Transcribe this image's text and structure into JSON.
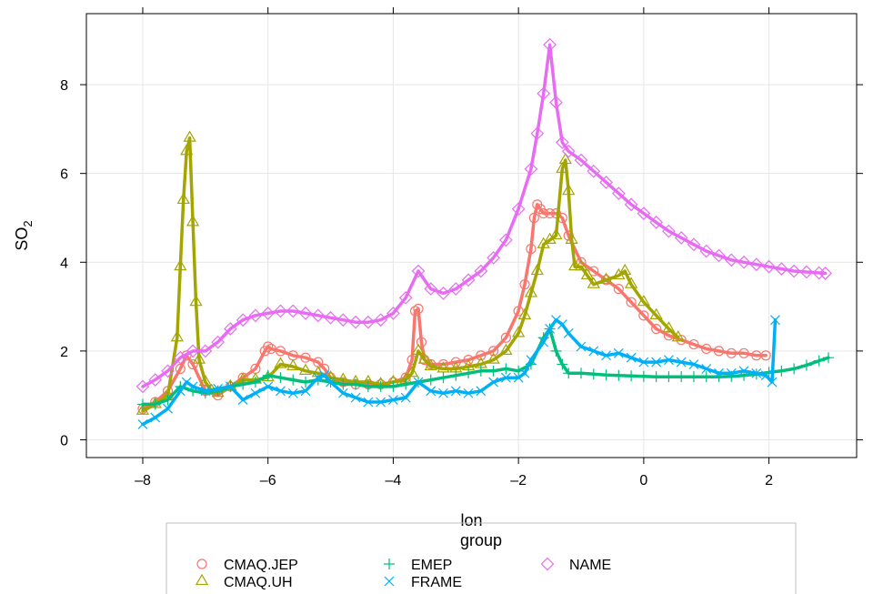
{
  "chart_data": {
    "type": "line",
    "xlabel": "lon",
    "ylabel": "SO",
    "ylabel_sub": "2",
    "xlim": [
      -8.9,
      3.4
    ],
    "ylim": [
      -0.4,
      9.6
    ],
    "xticks": [
      -8,
      -6,
      -4,
      -2,
      0,
      2
    ],
    "xtick_labels": [
      "–8",
      "–6",
      "–4",
      "–2",
      "0",
      "2"
    ],
    "yticks": [
      0,
      2,
      4,
      6,
      8
    ],
    "ytick_labels": [
      "0",
      "2",
      "4",
      "6",
      "8"
    ],
    "grid": true,
    "legend": {
      "title": "group",
      "placement": "bottom",
      "entries": [
        "CMAQ.JEP",
        "CMAQ.UH",
        "EMEP",
        "FRAME",
        "NAME"
      ]
    },
    "series": [
      {
        "name": "CMAQ.JEP",
        "color": "#F8766D",
        "marker": "circle",
        "x": [
          -8.0,
          -7.8,
          -7.6,
          -7.4,
          -7.3,
          -7.2,
          -7.0,
          -6.8,
          -6.6,
          -6.4,
          -6.2,
          -6.05,
          -6.0,
          -5.95,
          -5.8,
          -5.6,
          -5.4,
          -5.2,
          -5.1,
          -5.0,
          -4.8,
          -4.6,
          -4.4,
          -4.2,
          -4.0,
          -3.8,
          -3.7,
          -3.65,
          -3.6,
          -3.55,
          -3.5,
          -3.4,
          -3.2,
          -3.0,
          -2.8,
          -2.6,
          -2.4,
          -2.2,
          -2.0,
          -1.9,
          -1.8,
          -1.75,
          -1.7,
          -1.65,
          -1.6,
          -1.5,
          -1.4,
          -1.3,
          -1.2,
          -1.0,
          -0.8,
          -0.6,
          -0.4,
          -0.2,
          0.0,
          0.2,
          0.4,
          0.6,
          0.8,
          1.0,
          1.2,
          1.4,
          1.6,
          1.8,
          1.95
        ],
        "y": [
          0.7,
          0.85,
          1.1,
          1.6,
          1.9,
          1.7,
          1.1,
          1.0,
          1.2,
          1.4,
          1.6,
          2.0,
          2.1,
          2.05,
          2.0,
          1.9,
          1.85,
          1.75,
          1.6,
          1.4,
          1.3,
          1.25,
          1.25,
          1.25,
          1.3,
          1.4,
          1.8,
          2.9,
          2.95,
          2.2,
          1.8,
          1.7,
          1.7,
          1.75,
          1.8,
          1.9,
          2.0,
          2.3,
          2.9,
          3.5,
          4.3,
          5.0,
          5.3,
          5.2,
          5.1,
          5.1,
          5.1,
          5.0,
          4.6,
          4.0,
          3.8,
          3.6,
          3.4,
          3.1,
          2.8,
          2.5,
          2.35,
          2.25,
          2.15,
          2.05,
          2.0,
          1.95,
          1.95,
          1.9,
          1.9
        ]
      },
      {
        "name": "CMAQ.UH",
        "color": "#A3A500",
        "marker": "triangle",
        "x": [
          -8.0,
          -7.8,
          -7.6,
          -7.45,
          -7.4,
          -7.35,
          -7.3,
          -7.25,
          -7.2,
          -7.15,
          -7.1,
          -7.0,
          -6.9,
          -6.8,
          -6.6,
          -6.4,
          -6.2,
          -6.0,
          -5.8,
          -5.6,
          -5.4,
          -5.2,
          -5.0,
          -4.8,
          -4.6,
          -4.4,
          -4.2,
          -4.0,
          -3.8,
          -3.7,
          -3.6,
          -3.5,
          -3.4,
          -3.2,
          -3.0,
          -2.8,
          -2.6,
          -2.4,
          -2.2,
          -2.0,
          -1.9,
          -1.8,
          -1.7,
          -1.6,
          -1.5,
          -1.4,
          -1.3,
          -1.25,
          -1.2,
          -1.15,
          -1.1,
          -1.0,
          -0.9,
          -0.8,
          -0.6,
          -0.4,
          -0.3,
          -0.2,
          0.0,
          0.2,
          0.4,
          0.55
        ],
        "y": [
          0.65,
          0.8,
          1.0,
          2.3,
          3.9,
          5.4,
          6.5,
          6.8,
          4.9,
          3.1,
          1.8,
          1.3,
          1.1,
          1.05,
          1.2,
          1.35,
          1.35,
          1.4,
          1.7,
          1.65,
          1.55,
          1.5,
          1.4,
          1.35,
          1.3,
          1.3,
          1.25,
          1.3,
          1.35,
          1.5,
          2.0,
          1.8,
          1.65,
          1.6,
          1.6,
          1.65,
          1.7,
          1.8,
          2.0,
          2.4,
          2.8,
          3.3,
          3.8,
          4.4,
          4.5,
          4.6,
          6.1,
          6.3,
          5.6,
          4.5,
          3.9,
          3.9,
          3.7,
          3.5,
          3.6,
          3.7,
          3.8,
          3.5,
          3.1,
          2.8,
          2.5,
          2.3
        ]
      },
      {
        "name": "EMEP",
        "color": "#00BF7D",
        "marker": "plus",
        "x": [
          -8.0,
          -7.8,
          -7.6,
          -7.4,
          -7.2,
          -7.0,
          -6.8,
          -6.6,
          -6.4,
          -6.2,
          -6.0,
          -5.8,
          -5.6,
          -5.4,
          -5.2,
          -5.0,
          -4.8,
          -4.6,
          -4.4,
          -4.2,
          -4.0,
          -3.8,
          -3.6,
          -3.4,
          -3.2,
          -3.0,
          -2.8,
          -2.6,
          -2.4,
          -2.2,
          -2.0,
          -1.8,
          -1.6,
          -1.5,
          -1.4,
          -1.3,
          -1.2,
          -1.0,
          -0.8,
          -0.6,
          -0.4,
          -0.2,
          0.0,
          0.2,
          0.4,
          0.6,
          0.8,
          1.0,
          1.2,
          1.4,
          1.6,
          1.8,
          2.0,
          2.2,
          2.4,
          2.6,
          2.8,
          2.95
        ],
        "y": [
          0.8,
          0.8,
          0.9,
          1.2,
          1.1,
          1.05,
          1.1,
          1.2,
          1.25,
          1.3,
          1.45,
          1.4,
          1.35,
          1.3,
          1.35,
          1.3,
          1.25,
          1.25,
          1.2,
          1.2,
          1.2,
          1.25,
          1.3,
          1.35,
          1.4,
          1.45,
          1.5,
          1.55,
          1.55,
          1.6,
          1.55,
          1.7,
          2.3,
          2.5,
          2.0,
          1.7,
          1.5,
          1.5,
          1.48,
          1.46,
          1.45,
          1.44,
          1.43,
          1.42,
          1.42,
          1.42,
          1.42,
          1.42,
          1.42,
          1.43,
          1.45,
          1.48,
          1.52,
          1.55,
          1.6,
          1.68,
          1.78,
          1.85
        ]
      },
      {
        "name": "FRAME",
        "color": "#00B0F6",
        "marker": "cross",
        "x": [
          -8.0,
          -7.8,
          -7.6,
          -7.4,
          -7.3,
          -7.2,
          -7.0,
          -6.8,
          -6.6,
          -6.4,
          -6.2,
          -6.0,
          -5.8,
          -5.6,
          -5.4,
          -5.2,
          -5.1,
          -5.0,
          -4.8,
          -4.6,
          -4.4,
          -4.2,
          -4.0,
          -3.8,
          -3.6,
          -3.4,
          -3.2,
          -3.0,
          -2.8,
          -2.6,
          -2.4,
          -2.2,
          -2.0,
          -1.9,
          -1.8,
          -1.6,
          -1.5,
          -1.4,
          -1.3,
          -1.2,
          -1.0,
          -0.8,
          -0.6,
          -0.4,
          -0.2,
          0.0,
          0.2,
          0.4,
          0.6,
          0.8,
          1.0,
          1.2,
          1.4,
          1.6,
          1.8,
          1.95,
          2.05,
          2.1
        ],
        "y": [
          0.35,
          0.5,
          0.7,
          1.1,
          1.3,
          1.2,
          1.1,
          1.15,
          1.2,
          0.9,
          1.05,
          1.2,
          1.1,
          1.05,
          1.1,
          1.4,
          1.45,
          1.3,
          1.05,
          0.95,
          0.85,
          0.85,
          0.9,
          0.95,
          1.3,
          1.1,
          1.05,
          1.1,
          1.05,
          1.1,
          1.3,
          1.4,
          1.4,
          1.5,
          1.8,
          2.2,
          2.5,
          2.7,
          2.6,
          2.4,
          2.1,
          2.0,
          1.9,
          1.95,
          1.85,
          1.75,
          1.75,
          1.8,
          1.75,
          1.7,
          1.6,
          1.5,
          1.5,
          1.55,
          1.5,
          1.45,
          1.3,
          2.7
        ]
      },
      {
        "name": "NAME",
        "color": "#E76BF3",
        "marker": "diamond",
        "x": [
          -8.0,
          -7.8,
          -7.6,
          -7.4,
          -7.2,
          -7.0,
          -6.8,
          -6.6,
          -6.4,
          -6.2,
          -6.0,
          -5.8,
          -5.6,
          -5.4,
          -5.2,
          -5.0,
          -4.8,
          -4.6,
          -4.4,
          -4.2,
          -4.0,
          -3.8,
          -3.6,
          -3.4,
          -3.2,
          -3.0,
          -2.8,
          -2.6,
          -2.4,
          -2.2,
          -2.0,
          -1.8,
          -1.7,
          -1.6,
          -1.5,
          -1.4,
          -1.3,
          -1.2,
          -1.0,
          -0.8,
          -0.6,
          -0.4,
          -0.2,
          0.0,
          0.2,
          0.4,
          0.6,
          0.8,
          1.0,
          1.2,
          1.4,
          1.6,
          1.8,
          2.0,
          2.2,
          2.4,
          2.6,
          2.8,
          2.9
        ],
        "y": [
          1.2,
          1.35,
          1.55,
          1.85,
          2.0,
          2.0,
          2.2,
          2.5,
          2.7,
          2.8,
          2.85,
          2.9,
          2.9,
          2.85,
          2.8,
          2.75,
          2.7,
          2.65,
          2.65,
          2.7,
          2.85,
          3.2,
          3.8,
          3.4,
          3.3,
          3.4,
          3.6,
          3.8,
          4.1,
          4.5,
          5.2,
          6.1,
          6.9,
          7.8,
          8.9,
          7.6,
          6.7,
          6.5,
          6.3,
          6.05,
          5.8,
          5.55,
          5.3,
          5.1,
          4.9,
          4.7,
          4.55,
          4.4,
          4.25,
          4.15,
          4.05,
          4.0,
          3.95,
          3.9,
          3.85,
          3.8,
          3.78,
          3.76,
          3.75
        ]
      }
    ]
  }
}
